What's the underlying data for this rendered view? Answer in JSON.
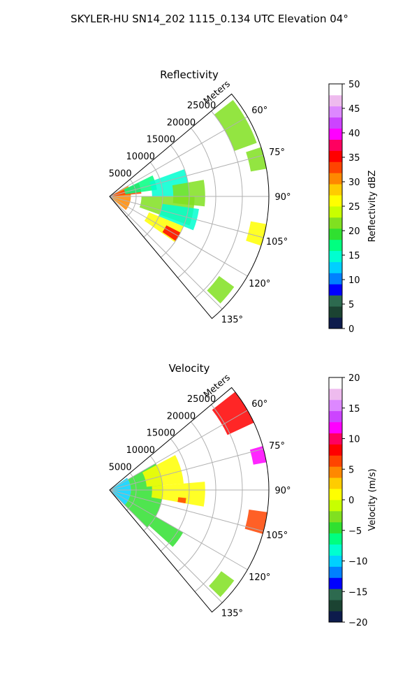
{
  "figure": {
    "suptitle": "SKYLER-HU  SN14_202  1115_0.134 UTC Elevation 04°"
  },
  "colors": {
    "grid": "#b0b0b0",
    "frame": "#000000"
  },
  "chart_data": [
    {
      "type": "heatmap",
      "projection": "polar-sector",
      "title": "Reflectivity",
      "radial_label": "Meters",
      "azimuth_range_deg": [
        50,
        140
      ],
      "range_lim": [
        0,
        30000
      ],
      "radial_ticks": [
        5000,
        10000,
        15000,
        20000,
        25000
      ],
      "radial_tick_labels": [
        "5000",
        "10000",
        "15000",
        "20000",
        "25000"
      ],
      "angle_ticks": [
        60,
        75,
        90,
        105,
        120,
        135
      ],
      "angle_tick_labels": [
        "60°",
        "75°",
        "90°",
        "105°",
        "120°",
        "135°"
      ],
      "grid": true,
      "colorbar": {
        "label": "Reflectivity dBZ",
        "vmin": 0,
        "vmax": 50,
        "ticks": [
          0,
          5,
          10,
          15,
          20,
          25,
          30,
          35,
          40,
          45,
          50
        ],
        "tick_labels": [
          "0",
          "5",
          "10",
          "15",
          "20",
          "25",
          "30",
          "35",
          "40",
          "45",
          "50"
        ],
        "colormap": [
          "#0d1b4c",
          "#1b4332",
          "#2d6a4f",
          "#0000ff",
          "#0080ff",
          "#00d0ff",
          "#00ffd0",
          "#00ff80",
          "#30e030",
          "#80e020",
          "#c8ff00",
          "#ffff00",
          "#ffcc00",
          "#ff8800",
          "#ff4400",
          "#ff0000",
          "#ff0060",
          "#ff00ff",
          "#cc44ff",
          "#dd88ff",
          "#eebbee",
          "#ffffff"
        ]
      },
      "cells": [
        {
          "range": [
            0,
            4000
          ],
          "az": [
            60,
            130
          ],
          "value": 30
        },
        {
          "range": [
            0,
            6000
          ],
          "az": [
            65,
            85
          ],
          "value": 32
        },
        {
          "range": [
            3000,
            9000
          ],
          "az": [
            64,
            82
          ],
          "value": 17
        },
        {
          "range": [
            8000,
            15000
          ],
          "az": [
            70,
            90
          ],
          "value": 14
        },
        {
          "range": [
            6000,
            16000
          ],
          "az": [
            90,
            110
          ],
          "value": 21
        },
        {
          "range": [
            10000,
            17000
          ],
          "az": [
            98,
            112
          ],
          "value": 14
        },
        {
          "range": [
            8000,
            15000
          ],
          "az": [
            112,
            125
          ],
          "value": 26
        },
        {
          "range": [
            12000,
            15000
          ],
          "az": [
            117,
            124
          ],
          "value": 35
        },
        {
          "range": [
            12000,
            18000
          ],
          "az": [
            80,
            96
          ],
          "value": 22
        },
        {
          "range": [
            25000,
            29500
          ],
          "az": [
            52,
            70
          ],
          "value": 21
        },
        {
          "range": [
            27000,
            30000
          ],
          "az": [
            72,
            80
          ],
          "value": 21
        },
        {
          "range": [
            27000,
            30000
          ],
          "az": [
            100,
            108
          ],
          "value": 25
        },
        {
          "range": [
            25500,
            29000
          ],
          "az": [
            126,
            134
          ],
          "value": 22
        }
      ]
    },
    {
      "type": "heatmap",
      "projection": "polar-sector",
      "title": "Velocity",
      "radial_label": "Meters",
      "azimuth_range_deg": [
        50,
        140
      ],
      "range_lim": [
        0,
        30000
      ],
      "radial_ticks": [
        5000,
        10000,
        15000,
        20000,
        25000
      ],
      "radial_tick_labels": [
        "5000",
        "10000",
        "15000",
        "20000",
        "25000"
      ],
      "angle_ticks": [
        60,
        75,
        90,
        105,
        120,
        135
      ],
      "angle_tick_labels": [
        "60°",
        "75°",
        "90°",
        "105°",
        "120°",
        "135°"
      ],
      "grid": true,
      "colorbar": {
        "label": "Velocity (m/s)",
        "vmin": -20,
        "vmax": 20,
        "ticks": [
          -20,
          -15,
          -10,
          -5,
          0,
          5,
          10,
          15,
          20
        ],
        "tick_labels": [
          "−20",
          "−15",
          "−10",
          "−5",
          "0",
          "5",
          "10",
          "15",
          "20"
        ],
        "colormap": [
          "#0d1b4c",
          "#1b4332",
          "#2d6a4f",
          "#0000ff",
          "#0080ff",
          "#00d0ff",
          "#00ffd0",
          "#00ff80",
          "#30e030",
          "#80e020",
          "#c8ff00",
          "#ffff00",
          "#ffcc00",
          "#ff8800",
          "#ff4400",
          "#ff0000",
          "#ff0060",
          "#ff00ff",
          "#cc44ff",
          "#dd88ff",
          "#eebbee",
          "#ffffff"
        ]
      },
      "cells": [
        {
          "range": [
            0,
            4000
          ],
          "az": [
            55,
            135
          ],
          "value": -10
        },
        {
          "range": [
            4000,
            10000
          ],
          "az": [
            60,
            135
          ],
          "value": -4
        },
        {
          "range": [
            7000,
            14000
          ],
          "az": [
            62,
            85
          ],
          "value": 1
        },
        {
          "range": [
            8000,
            18000
          ],
          "az": [
            85,
            100
          ],
          "value": 1
        },
        {
          "range": [
            10000,
            16000
          ],
          "az": [
            120,
            132
          ],
          "value": -5
        },
        {
          "range": [
            13000,
            14500
          ],
          "az": [
            96,
            100
          ],
          "value": 6
        },
        {
          "range": [
            24500,
            30000
          ],
          "az": [
            52,
            65
          ],
          "value": 9
        },
        {
          "range": [
            27500,
            30000
          ],
          "az": [
            74,
            80
          ],
          "value": 12
        },
        {
          "range": [
            26500,
            30000
          ],
          "az": [
            98,
            106
          ],
          "value": 7
        },
        {
          "range": [
            26000,
            29000
          ],
          "az": [
            126,
            134
          ],
          "value": -3
        }
      ]
    }
  ]
}
